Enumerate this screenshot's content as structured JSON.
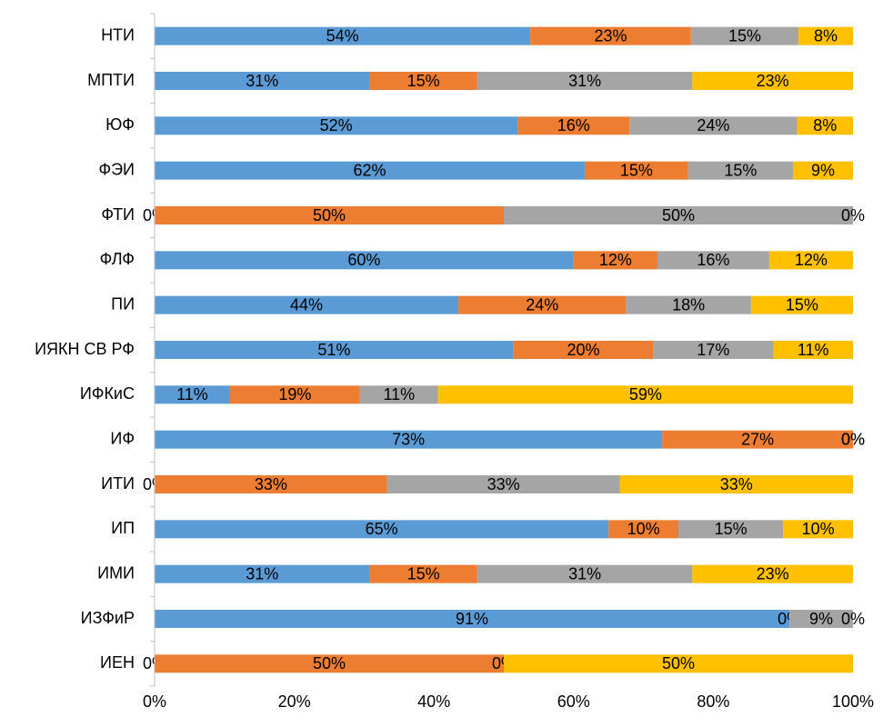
{
  "chart_data": {
    "type": "stacked-bar-horizontal",
    "categories": [
      "НТИ",
      "МПТИ",
      "ЮФ",
      "ФЭИ",
      "ФТИ",
      "ФЛФ",
      "ПИ",
      "ИЯКН СВ РФ",
      "ИФКиС",
      "ИФ",
      "ИТИ",
      "ИП",
      "ИМИ",
      "ИЗФиР",
      "ИЕН"
    ],
    "series": [
      {
        "color": "#5b9bd5",
        "values": [
          53.8,
          30.8,
          52,
          61.6,
          0,
          60,
          43.5,
          51.4,
          10.8,
          72.7,
          0,
          65,
          30.8,
          90.9,
          0
        ],
        "value_labels": [
          "54%",
          "31%",
          "52%",
          "62%",
          "0%",
          "60%",
          "44%",
          "51%",
          "11%",
          "73%",
          "0%",
          "65%",
          "31%",
          "91%",
          "0%"
        ]
      },
      {
        "color": "#ed7d31",
        "values": [
          23,
          15.4,
          16,
          14.8,
          50,
          12,
          24,
          20,
          18.6,
          27.3,
          33.3,
          10,
          15.4,
          0,
          50
        ],
        "value_labels": [
          "23%",
          "15%",
          "16%",
          "15%",
          "50%",
          "12%",
          "24%",
          "20%",
          "19%",
          "27%",
          "33%",
          "10%",
          "15%",
          "0%",
          "50%"
        ]
      },
      {
        "color": "#a5a5a5",
        "values": [
          15.4,
          30.8,
          24,
          15,
          50,
          16,
          17.9,
          17.2,
          11.2,
          0,
          33.3,
          15,
          30.8,
          9.1,
          0
        ],
        "value_labels": [
          "15%",
          "31%",
          "24%",
          "15%",
          "50%",
          "16%",
          "18%",
          "17%",
          "11%",
          "0%",
          "33%",
          "15%",
          "31%",
          "9%",
          "0%"
        ]
      },
      {
        "color": "#ffc000",
        "values": [
          7.8,
          23,
          8,
          8.6,
          0,
          12,
          14.6,
          11.4,
          59.4,
          0,
          33.4,
          10,
          23,
          0,
          50
        ],
        "value_labels": [
          "8%",
          "23%",
          "8%",
          "9%",
          "0%",
          "12%",
          "15%",
          "11%",
          "59%",
          "0%",
          "33%",
          "10%",
          "23%",
          "0%",
          "50%"
        ]
      }
    ],
    "xlim": [
      0,
      100
    ],
    "xticks": [
      {
        "value": 0,
        "label": "0%"
      },
      {
        "value": 20,
        "label": "20%"
      },
      {
        "value": 40,
        "label": "40%"
      },
      {
        "value": 60,
        "label": "60%"
      },
      {
        "value": 80,
        "label": "80%"
      },
      {
        "value": 100,
        "label": "100%"
      }
    ]
  }
}
